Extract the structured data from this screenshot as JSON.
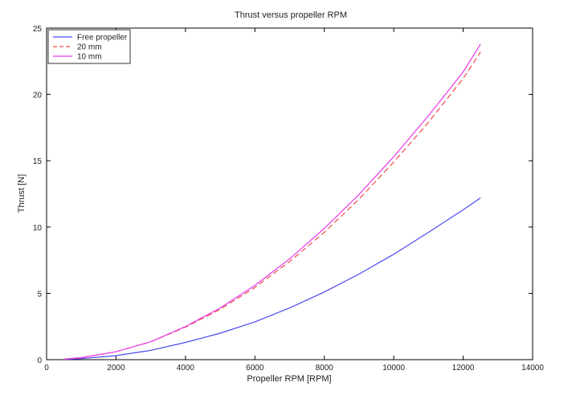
{
  "chart_data": {
    "type": "line",
    "title": "Thrust versus propeller RPM",
    "xlabel": "Propeller RPM [RPM]",
    "ylabel": "Thrust [N]",
    "xlim": [
      0,
      14000
    ],
    "ylim": [
      0,
      25
    ],
    "xticks": [
      "0",
      "2000",
      "4000",
      "6000",
      "8000",
      "10000",
      "12000",
      "14000"
    ],
    "yticks": [
      "0",
      "5",
      "10",
      "15",
      "20",
      "25"
    ],
    "grid": false,
    "legend_position": "top-left",
    "series": [
      {
        "name": "Free propeller",
        "color": "#4a4aee",
        "style": "solid",
        "x": [
          500,
          1000,
          2000,
          3000,
          4000,
          5000,
          6000,
          7000,
          8000,
          9000,
          10000,
          11000,
          12000,
          12500
        ],
        "y": [
          0.02,
          0.08,
          0.3,
          0.7,
          1.3,
          2.0,
          2.85,
          3.9,
          5.1,
          6.45,
          7.95,
          9.6,
          11.3,
          12.2
        ]
      },
      {
        "name": "20 mm",
        "color": "#ee4a4a",
        "style": "dashed",
        "x": [
          500,
          1000,
          2000,
          3000,
          4000,
          5000,
          6000,
          7000,
          8000,
          9000,
          10000,
          11000,
          12000,
          12500
        ],
        "y": [
          0.04,
          0.15,
          0.6,
          1.35,
          2.45,
          3.8,
          5.45,
          7.4,
          9.6,
          12.1,
          14.9,
          17.9,
          21.2,
          23.2
        ]
      },
      {
        "name": "10 mm",
        "color": "#e83ae8",
        "style": "solid",
        "x": [
          500,
          1000,
          2000,
          3000,
          4000,
          5000,
          6000,
          7000,
          8000,
          9000,
          10000,
          11000,
          12000,
          12500
        ],
        "y": [
          0.04,
          0.15,
          0.6,
          1.35,
          2.5,
          3.9,
          5.6,
          7.6,
          9.9,
          12.45,
          15.3,
          18.4,
          21.7,
          23.8
        ]
      }
    ]
  }
}
